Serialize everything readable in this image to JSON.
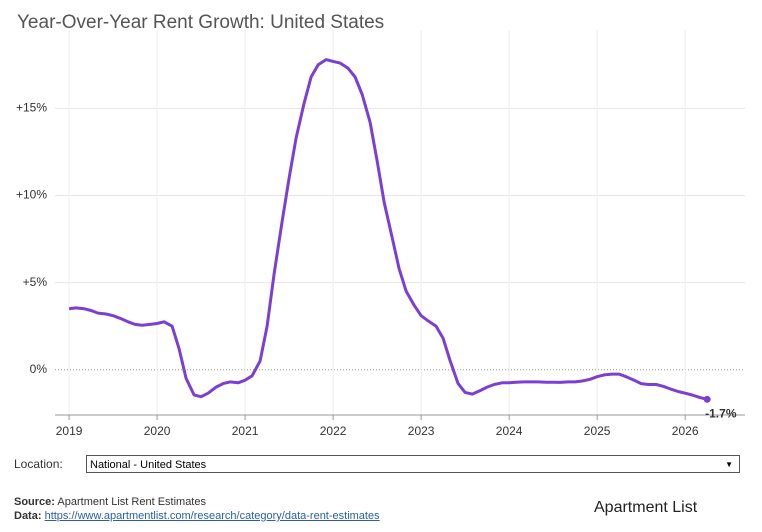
{
  "chart_data": {
    "type": "line",
    "title": "Year-Over-Year Rent Growth: United States",
    "x": [
      2019.0,
      2019.08,
      2019.17,
      2019.25,
      2019.33,
      2019.42,
      2019.5,
      2019.58,
      2019.67,
      2019.75,
      2019.83,
      2019.92,
      2020.0,
      2020.08,
      2020.17,
      2020.25,
      2020.33,
      2020.42,
      2020.5,
      2020.58,
      2020.67,
      2020.75,
      2020.83,
      2020.92,
      2021.0,
      2021.08,
      2021.17,
      2021.25,
      2021.33,
      2021.42,
      2021.5,
      2021.58,
      2021.67,
      2021.75,
      2021.83,
      2021.92,
      2022.0,
      2022.08,
      2022.17,
      2022.25,
      2022.33,
      2022.42,
      2022.5,
      2022.58,
      2022.67,
      2022.75,
      2022.83,
      2022.92,
      2023.0,
      2023.08,
      2023.17,
      2023.25,
      2023.33,
      2023.42,
      2023.5,
      2023.58,
      2023.67,
      2023.75,
      2023.83,
      2023.92,
      2024.0,
      2024.08,
      2024.17,
      2024.25,
      2024.33,
      2024.42,
      2024.5,
      2024.58,
      2024.67,
      2024.75,
      2024.83,
      2024.92,
      2025.0,
      2025.08,
      2025.17,
      2025.25,
      2025.33,
      2025.42,
      2025.5,
      2025.58,
      2025.67,
      2025.75,
      2025.83,
      2025.92,
      2026.0,
      2026.08,
      2026.17,
      2026.25
    ],
    "series": [
      {
        "name": "National - United States",
        "color": "#7b3fd4",
        "values": [
          3.5,
          3.55,
          3.5,
          3.4,
          3.25,
          3.2,
          3.1,
          2.95,
          2.75,
          2.6,
          2.55,
          2.6,
          2.65,
          2.75,
          2.5,
          1.2,
          -0.5,
          -1.45,
          -1.55,
          -1.35,
          -1.0,
          -0.8,
          -0.7,
          -0.75,
          -0.6,
          -0.35,
          0.5,
          2.5,
          5.5,
          8.5,
          11.0,
          13.3,
          15.3,
          16.8,
          17.5,
          17.8,
          17.7,
          17.6,
          17.3,
          16.8,
          15.8,
          14.2,
          12.0,
          9.6,
          7.6,
          5.8,
          4.5,
          3.7,
          3.1,
          2.8,
          2.5,
          1.8,
          0.5,
          -0.8,
          -1.3,
          -1.4,
          -1.2,
          -1.0,
          -0.85,
          -0.75,
          -0.75,
          -0.72,
          -0.7,
          -0.7,
          -0.7,
          -0.72,
          -0.72,
          -0.73,
          -0.7,
          -0.7,
          -0.65,
          -0.55,
          -0.4,
          -0.3,
          -0.25,
          -0.25,
          -0.4,
          -0.6,
          -0.8,
          -0.85,
          -0.85,
          -0.95,
          -1.1,
          -1.25,
          -1.35,
          -1.45,
          -1.6,
          -1.7
        ]
      }
    ],
    "end_label": "-1.7%",
    "xlim": [
      2018.84,
      2026.68
    ],
    "xticks": [
      2019,
      2020,
      2021,
      2022,
      2023,
      2024,
      2025,
      2026
    ],
    "ylim": [
      -2.6,
      19.5
    ],
    "yticks": [
      {
        "value": 0,
        "label": "0%"
      },
      {
        "value": 5,
        "label": "+5%"
      },
      {
        "value": 10,
        "label": "+10%"
      },
      {
        "value": 15,
        "label": "+15%"
      }
    ],
    "grid": true
  },
  "controls": {
    "location_label": "Location:",
    "location_value": "National - United States"
  },
  "footer": {
    "source_label": "Source:",
    "source": "Apartment List Rent Estimates",
    "data_label": "Data:",
    "data_url": "https://www.apartmentlist.com/research/category/data-rent-estimates",
    "logo": "Apartment List"
  }
}
